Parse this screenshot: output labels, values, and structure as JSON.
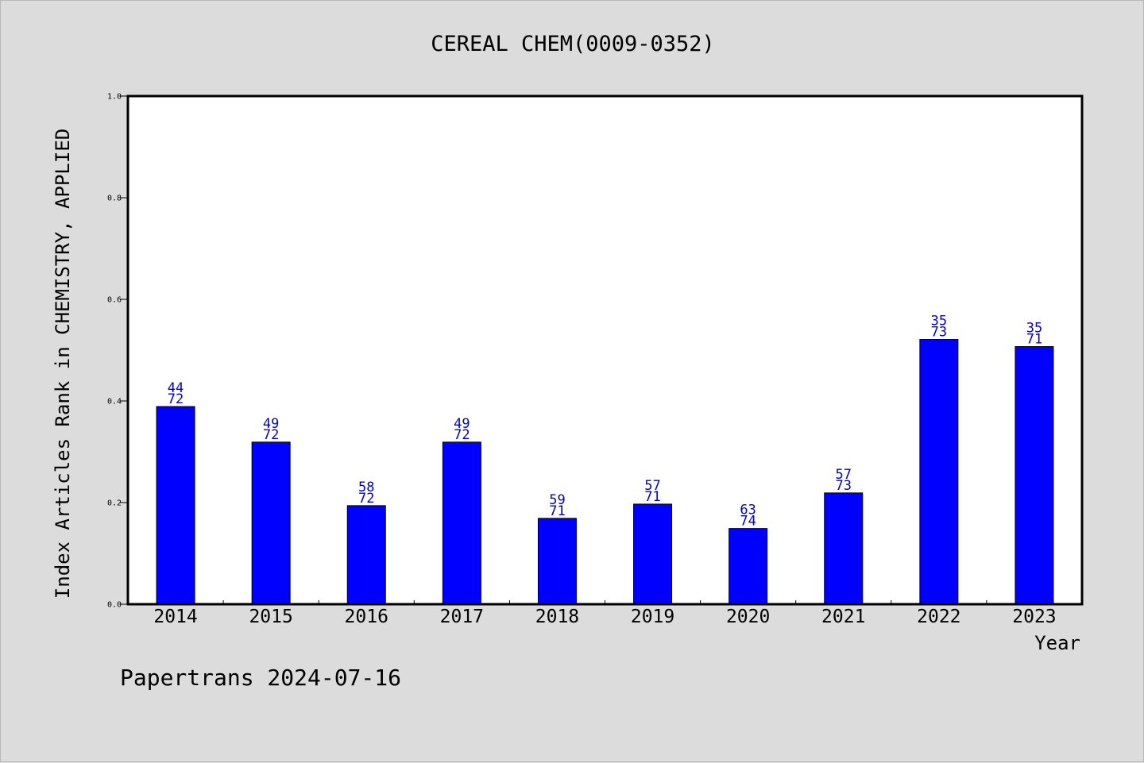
{
  "chart_data": {
    "type": "bar",
    "title": "CEREAL CHEM(0009-0352)",
    "xlabel": "Year",
    "ylabel": "Index Articles Rank in CHEMISTRY, APPLIED",
    "ylim": [
      0,
      1.0
    ],
    "yticks": [
      "0.0",
      "0.2",
      "0.4",
      "0.6",
      "0.8",
      "1.0"
    ],
    "categories": [
      "2014",
      "2015",
      "2016",
      "2017",
      "2018",
      "2019",
      "2020",
      "2021",
      "2022",
      "2023"
    ],
    "values": [
      0.389,
      0.319,
      0.194,
      0.319,
      0.169,
      0.197,
      0.149,
      0.219,
      0.521,
      0.507
    ],
    "ranks": [
      "44",
      "49",
      "58",
      "49",
      "59",
      "57",
      "63",
      "57",
      "35",
      "35"
    ],
    "totals": [
      "72",
      "72",
      "72",
      "72",
      "71",
      "71",
      "74",
      "73",
      "73",
      "71"
    ],
    "bar_color": "#0000ff",
    "label_color": "#0000cc",
    "grid": false
  },
  "footer": "Papertrans 2024-07-16"
}
